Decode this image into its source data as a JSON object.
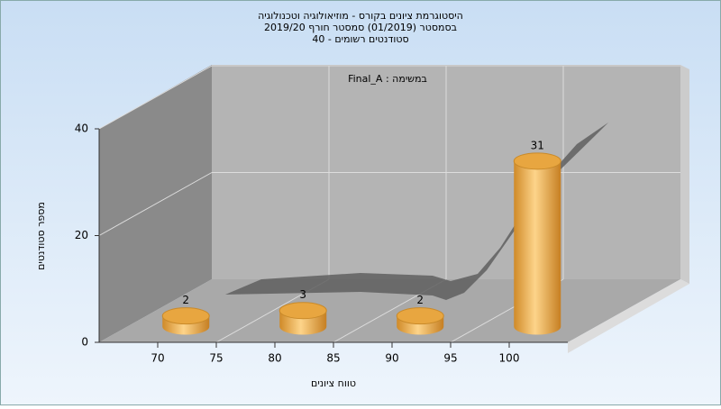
{
  "chart_data": {
    "type": "bar",
    "title": [
      "היסטוגרמת ציונים בקורס - מוזיאולוגיה וטכנולוגיה",
      "בסמסטר  (01/2019)  סמסטר חורף 2019/20",
      "סטודנטים רשומים - 40"
    ],
    "annotation": "במשימה : Final_A",
    "x_label": "טווח ציונים",
    "y_label": "מספר סטודנטים",
    "x": [
      70,
      80,
      90,
      100
    ],
    "values": [
      2,
      3,
      2,
      31
    ],
    "color": "#e8a640",
    "xlim": [
      65,
      105
    ],
    "xticks": [
      70,
      75,
      80,
      85,
      90,
      95,
      100
    ],
    "ylim": [
      0,
      40
    ],
    "yticks": [
      0,
      20,
      40
    ],
    "grid": true
  }
}
